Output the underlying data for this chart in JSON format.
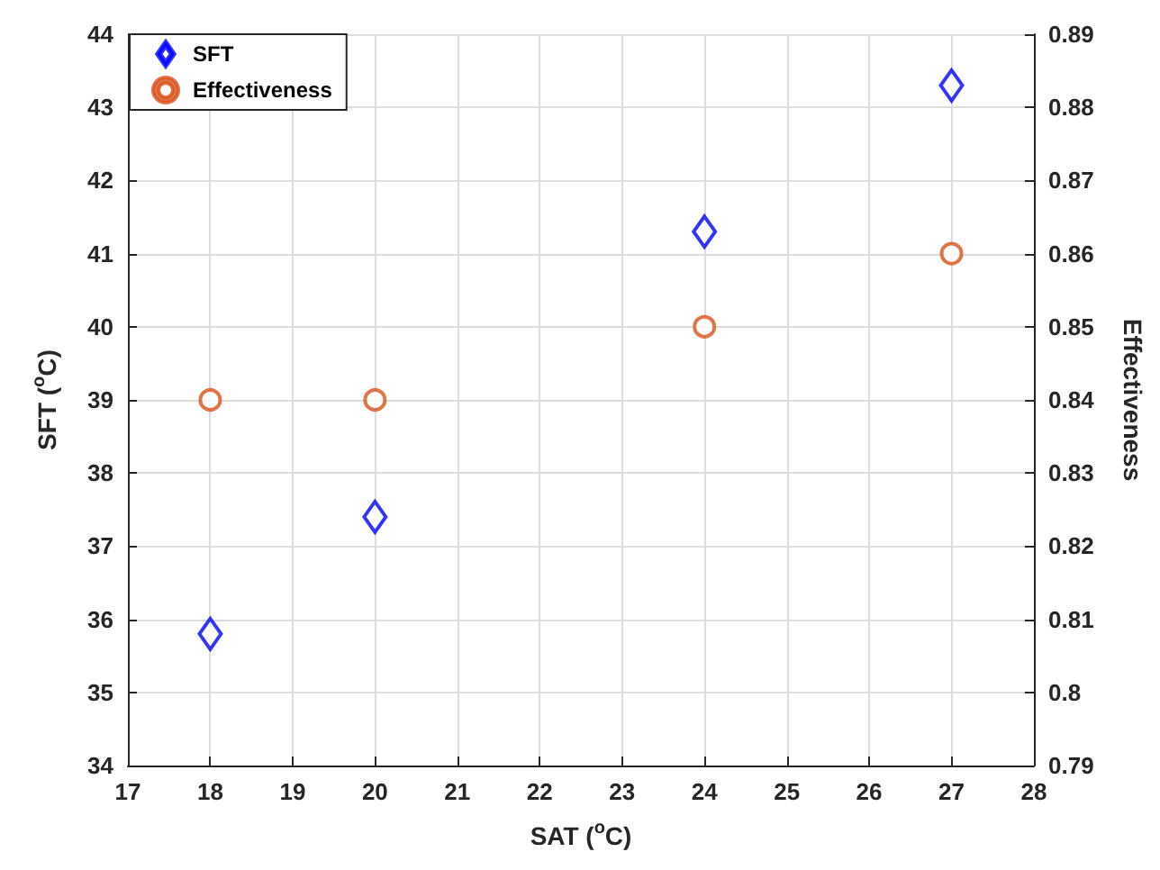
{
  "chart_data": {
    "type": "scatter",
    "xlabel": "SAT ($^{o}$C)",
    "ylabel": "SFT ($^{o}$C)",
    "y2label": "Effectiveness",
    "x": [
      18,
      20,
      24,
      27
    ],
    "series": [
      {
        "name": "SFT",
        "color": "#0000ff",
        "marker": "diamond",
        "values": [
          35.8,
          37.4,
          41.3,
          43.3
        ]
      },
      {
        "name": "Effectiveness",
        "color": "#d95319",
        "marker": "circle",
        "axis": "y2",
        "values": [
          0.84,
          0.84,
          0.85,
          0.86
        ]
      }
    ],
    "xlim": [
      17,
      28
    ],
    "xticks": [
      17,
      18,
      19,
      20,
      21,
      22,
      23,
      24,
      25,
      26,
      27,
      28
    ],
    "ylim": [
      34,
      44
    ],
    "yticks": [
      34,
      35,
      36,
      37,
      38,
      39,
      40,
      41,
      42,
      43,
      44
    ],
    "y2lim": [
      0.79,
      0.89
    ],
    "y2ticks": [
      0.79,
      0.8,
      0.81,
      0.82,
      0.83,
      0.84,
      0.85,
      0.86,
      0.87,
      0.88,
      0.89
    ],
    "grid": true,
    "legend": "top left"
  }
}
